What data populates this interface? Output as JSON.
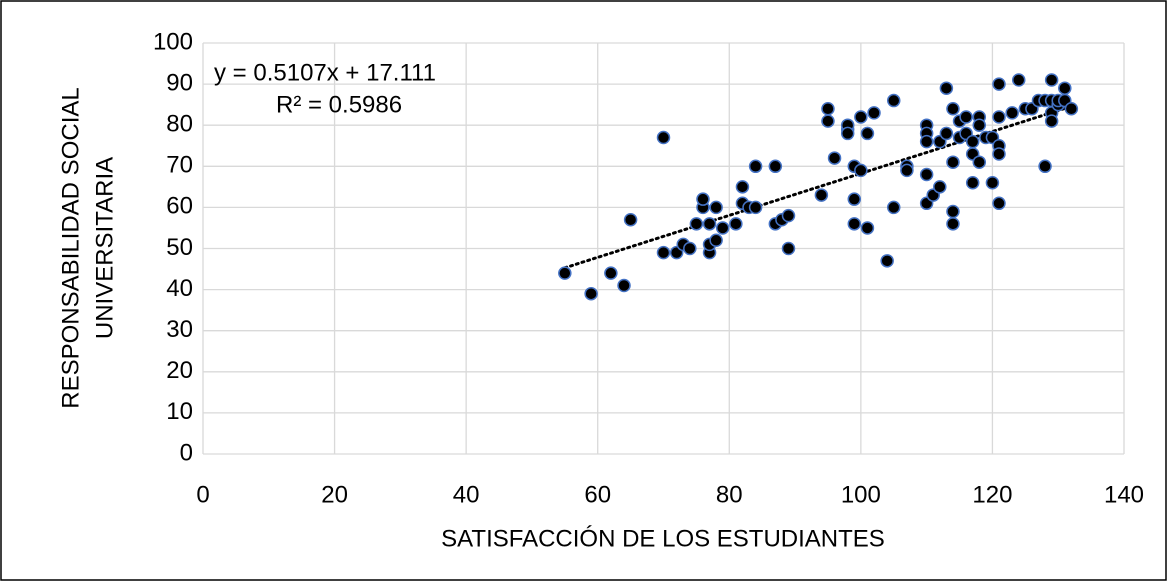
{
  "chart_data": {
    "type": "scatter",
    "xlabel": "SATISFACCIÓN DE LOS ESTUDIANTES",
    "ylabel": [
      "RESPONSABILIDAD SOCIAL",
      "UNIVERSITARIA"
    ],
    "annotations": [
      "y = 0.5107x + 17.111",
      "R² = 0.5986"
    ],
    "xlim": [
      0,
      140
    ],
    "xticks": [
      0,
      20,
      40,
      60,
      80,
      100,
      120,
      140
    ],
    "ylim": [
      0,
      100
    ],
    "yticks": [
      0,
      10,
      20,
      30,
      40,
      50,
      60,
      70,
      80,
      90,
      100
    ],
    "grid": true,
    "color": "#000000",
    "edgecolor": "#4472c4",
    "trendline_color": "#000000",
    "x": [
      55,
      59,
      62,
      64,
      65,
      70,
      70,
      72,
      73,
      74,
      75,
      76,
      76,
      77,
      77,
      77,
      78,
      78,
      79,
      81,
      82,
      82,
      83,
      84,
      84,
      87,
      87,
      88,
      89,
      89,
      94,
      95,
      95,
      96,
      98,
      98,
      98,
      99,
      99,
      99,
      100,
      100,
      101,
      101,
      102,
      104,
      105,
      105,
      107,
      107,
      110,
      110,
      110,
      110,
      110,
      111,
      112,
      112,
      113,
      113,
      114,
      114,
      114,
      114,
      115,
      115,
      116,
      116,
      117,
      117,
      117,
      118,
      118,
      118,
      119,
      120,
      120,
      121,
      121,
      121,
      121,
      121,
      123,
      124,
      125,
      126,
      127,
      128,
      128,
      129,
      129,
      129,
      129,
      130,
      130,
      131,
      131,
      132
    ],
    "y": [
      44,
      39,
      44,
      41,
      57,
      77,
      49,
      49,
      51,
      50,
      56,
      60,
      62,
      56,
      49,
      51,
      52,
      60,
      55,
      56,
      61,
      65,
      60,
      60,
      70,
      70,
      56,
      57,
      58,
      50,
      63,
      84,
      81,
      72,
      79,
      80,
      78,
      70,
      62,
      56,
      82,
      69,
      55,
      78,
      83,
      47,
      86,
      60,
      70,
      69,
      80,
      78,
      76,
      68,
      61,
      63,
      65,
      76,
      89,
      78,
      84,
      71,
      59,
      56,
      81,
      77,
      82,
      78,
      76,
      73,
      66,
      82,
      80,
      71,
      77,
      66,
      77,
      90,
      82,
      75,
      73,
      61,
      83,
      91,
      84,
      84,
      86,
      86,
      70,
      91,
      86,
      83,
      81,
      85,
      86,
      89,
      86,
      84
    ]
  }
}
